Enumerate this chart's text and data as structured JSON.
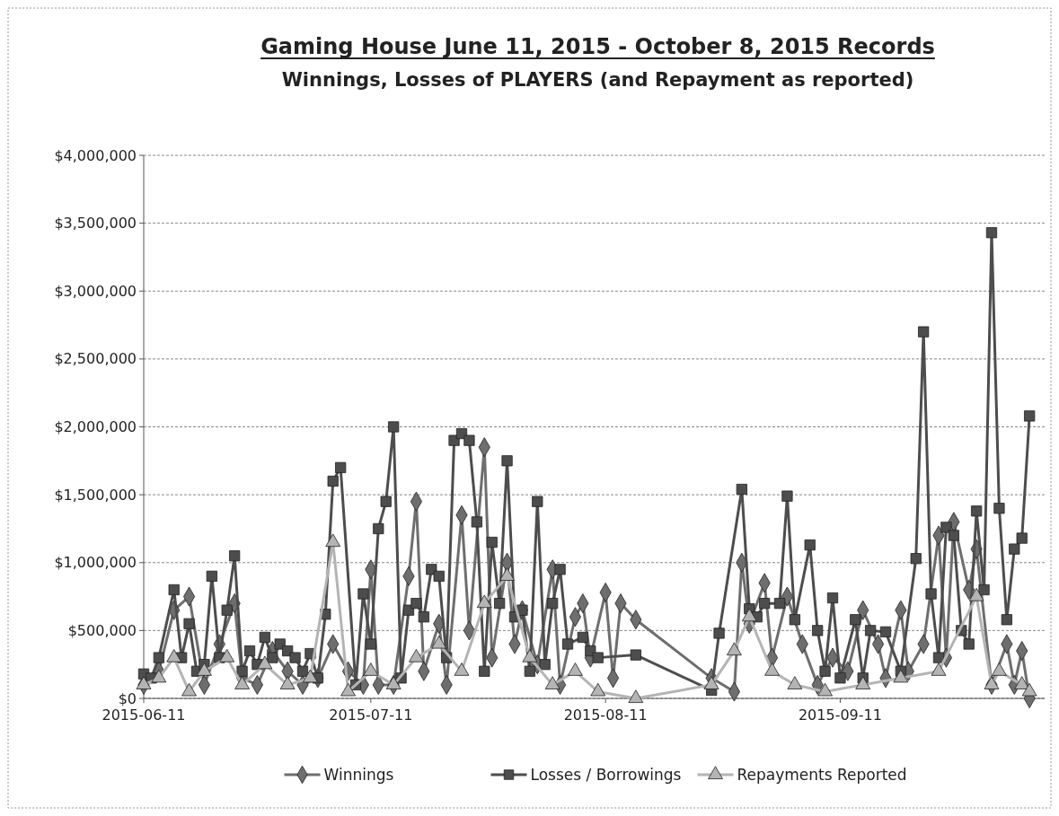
{
  "chart_data": {
    "type": "line",
    "title": "Gaming House June 11, 2015 - October 8, 2015 Records",
    "subtitle": "Winnings, Losses of PLAYERS (and Repayment as reported)",
    "xlim": [
      "2015-06-11",
      "2015-10-08"
    ],
    "xticks": [
      "2015-06-11",
      "2015-07-11",
      "2015-08-11",
      "2015-09-11"
    ],
    "ylim": [
      0,
      4000000
    ],
    "yticks": [
      {
        "value": 0,
        "label": "$0"
      },
      {
        "value": 500000,
        "label": "$500,000"
      },
      {
        "value": 1000000,
        "label": "$1,000,000"
      },
      {
        "value": 1500000,
        "label": "$1,500,000"
      },
      {
        "value": 2000000,
        "label": "$2,000,000"
      },
      {
        "value": 2500000,
        "label": "$2,500,000"
      },
      {
        "value": 3000000,
        "label": "$3,000,000"
      },
      {
        "value": 3500000,
        "label": "$3,500,000"
      },
      {
        "value": 4000000,
        "label": "$4,000,000"
      }
    ],
    "grid": "y",
    "legend": "bottom",
    "line_style": "solid",
    "series": [
      {
        "name": "Winnings",
        "color": "#6e6e6e",
        "marker": "diamond",
        "x": [
          "2015-06-11",
          "2015-06-13",
          "2015-06-15",
          "2015-06-17",
          "2015-06-19",
          "2015-06-21",
          "2015-06-23",
          "2015-06-24",
          "2015-06-26",
          "2015-06-28",
          "2015-06-30",
          "2015-07-02",
          "2015-07-04",
          "2015-07-06",
          "2015-07-08",
          "2015-07-10",
          "2015-07-11",
          "2015-07-12",
          "2015-07-14",
          "2015-07-16",
          "2015-07-17",
          "2015-07-18",
          "2015-07-20",
          "2015-07-21",
          "2015-07-23",
          "2015-07-24",
          "2015-07-26",
          "2015-07-27",
          "2015-07-29",
          "2015-07-30",
          "2015-07-31",
          "2015-08-02",
          "2015-08-04",
          "2015-08-05",
          "2015-08-07",
          "2015-08-08",
          "2015-08-09",
          "2015-08-11",
          "2015-08-12",
          "2015-08-13",
          "2015-08-15",
          "2015-08-25",
          "2015-08-28",
          "2015-08-29",
          "2015-08-30",
          "2015-09-01",
          "2015-09-02",
          "2015-09-04",
          "2015-09-06",
          "2015-09-08",
          "2015-09-10",
          "2015-09-12",
          "2015-09-14",
          "2015-09-16",
          "2015-09-17",
          "2015-09-19",
          "2015-09-20",
          "2015-09-22",
          "2015-09-24",
          "2015-09-25",
          "2015-09-26",
          "2015-09-28",
          "2015-09-29",
          "2015-10-01",
          "2015-10-03",
          "2015-10-04",
          "2015-10-05",
          "2015-10-06"
        ],
        "values": [
          100000,
          200000,
          650000,
          750000,
          100000,
          400000,
          700000,
          150000,
          100000,
          350000,
          200000,
          100000,
          150000,
          400000,
          200000,
          100000,
          950000,
          100000,
          100000,
          900000,
          1450000,
          200000,
          550000,
          100000,
          1350000,
          500000,
          1850000,
          300000,
          1000000,
          400000,
          650000,
          250000,
          950000,
          100000,
          600000,
          700000,
          300000,
          780000,
          150000,
          700000,
          580000,
          150000,
          50000,
          1000000,
          550000,
          850000,
          300000,
          750000,
          400000,
          100000,
          300000,
          200000,
          650000,
          400000,
          150000,
          650000,
          200000,
          400000,
          1200000,
          300000,
          1300000,
          800000,
          1100000,
          100000,
          400000,
          100000,
          350000,
          0
        ]
      },
      {
        "name": "Losses / Borrowings",
        "color": "#4d4d4d",
        "marker": "square",
        "x": [
          "2015-06-11",
          "2015-06-12",
          "2015-06-13",
          "2015-06-15",
          "2015-06-16",
          "2015-06-17",
          "2015-06-18",
          "2015-06-19",
          "2015-06-20",
          "2015-06-21",
          "2015-06-22",
          "2015-06-23",
          "2015-06-24",
          "2015-06-25",
          "2015-06-26",
          "2015-06-27",
          "2015-06-28",
          "2015-06-29",
          "2015-06-30",
          "2015-07-01",
          "2015-07-02",
          "2015-07-03",
          "2015-07-04",
          "2015-07-05",
          "2015-07-06",
          "2015-07-07",
          "2015-07-09",
          "2015-07-10",
          "2015-07-11",
          "2015-07-12",
          "2015-07-13",
          "2015-07-14",
          "2015-07-15",
          "2015-07-16",
          "2015-07-17",
          "2015-07-18",
          "2015-07-19",
          "2015-07-20",
          "2015-07-21",
          "2015-07-22",
          "2015-07-23",
          "2015-07-24",
          "2015-07-25",
          "2015-07-26",
          "2015-07-27",
          "2015-07-28",
          "2015-07-29",
          "2015-07-30",
          "2015-07-31",
          "2015-08-01",
          "2015-08-02",
          "2015-08-03",
          "2015-08-04",
          "2015-08-05",
          "2015-08-06",
          "2015-08-08",
          "2015-08-09",
          "2015-08-10",
          "2015-08-15",
          "2015-08-25",
          "2015-08-26",
          "2015-08-29",
          "2015-08-30",
          "2015-08-31",
          "2015-09-01",
          "2015-09-03",
          "2015-09-04",
          "2015-09-05",
          "2015-09-07",
          "2015-09-08",
          "2015-09-09",
          "2015-09-10",
          "2015-09-11",
          "2015-09-13",
          "2015-09-14",
          "2015-09-15",
          "2015-09-17",
          "2015-09-19",
          "2015-09-21",
          "2015-09-22",
          "2015-09-23",
          "2015-09-24",
          "2015-09-25",
          "2015-09-26",
          "2015-09-27",
          "2015-09-28",
          "2015-09-29",
          "2015-09-30",
          "2015-10-01",
          "2015-10-02",
          "2015-10-03",
          "2015-10-04",
          "2015-10-05",
          "2015-10-06"
        ],
        "values": [
          180000,
          150000,
          300000,
          800000,
          300000,
          550000,
          200000,
          250000,
          900000,
          300000,
          650000,
          1050000,
          200000,
          350000,
          250000,
          450000,
          300000,
          400000,
          350000,
          300000,
          200000,
          330000,
          150000,
          620000,
          1600000,
          1700000,
          100000,
          770000,
          400000,
          1250000,
          1450000,
          2000000,
          150000,
          650000,
          700000,
          600000,
          950000,
          900000,
          300000,
          1900000,
          1950000,
          1900000,
          1300000,
          200000,
          1150000,
          700000,
          1750000,
          600000,
          650000,
          200000,
          1450000,
          250000,
          700000,
          950000,
          400000,
          450000,
          350000,
          300000,
          320000,
          60000,
          480000,
          1540000,
          660000,
          600000,
          700000,
          700000,
          1490000,
          580000,
          1130000,
          500000,
          200000,
          740000,
          150000,
          580000,
          150000,
          500000,
          490000,
          200000,
          1030000,
          2700000,
          770000,
          300000,
          1260000,
          1200000,
          500000,
          400000,
          1380000,
          800000,
          3430000,
          1400000,
          580000,
          1100000,
          1180000,
          2080000
        ]
      },
      {
        "name": "Repayments Reported",
        "color": "#b4b4b4",
        "marker": "triangle",
        "x": [
          "2015-06-11",
          "2015-06-13",
          "2015-06-15",
          "2015-06-17",
          "2015-06-19",
          "2015-06-22",
          "2015-06-24",
          "2015-06-27",
          "2015-06-30",
          "2015-07-03",
          "2015-07-06",
          "2015-07-08",
          "2015-07-11",
          "2015-07-14",
          "2015-07-17",
          "2015-07-20",
          "2015-07-23",
          "2015-07-26",
          "2015-07-29",
          "2015-08-01",
          "2015-08-04",
          "2015-08-07",
          "2015-08-10",
          "2015-08-15",
          "2015-08-25",
          "2015-08-28",
          "2015-08-30",
          "2015-09-02",
          "2015-09-05",
          "2015-09-09",
          "2015-09-14",
          "2015-09-19",
          "2015-09-24",
          "2015-09-29",
          "2015-10-01",
          "2015-10-02",
          "2015-10-05",
          "2015-10-06"
        ],
        "values": [
          100000,
          150000,
          300000,
          50000,
          200000,
          300000,
          100000,
          250000,
          100000,
          150000,
          1150000,
          50000,
          200000,
          100000,
          300000,
          400000,
          200000,
          700000,
          900000,
          300000,
          100000,
          200000,
          50000,
          0,
          100000,
          350000,
          600000,
          200000,
          100000,
          50000,
          100000,
          150000,
          200000,
          750000,
          100000,
          200000,
          100000,
          50000
        ]
      }
    ]
  }
}
